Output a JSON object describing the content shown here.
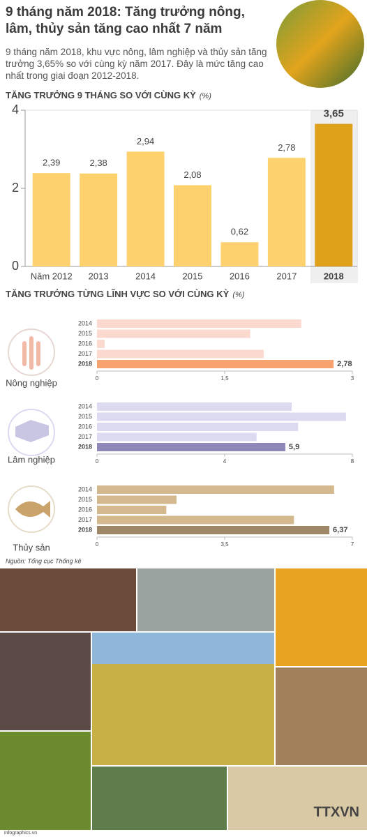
{
  "header": {
    "title": "9 tháng năm 2018: Tăng trưởng nông, lâm, thủy sản tăng cao nhất 7 năm",
    "description": "9 tháng năm 2018, khu vực nông, lâm nghiệp và thủy sản tăng trưởng 3,65% so với cùng kỳ năm 2017. Đây là mức tăng cao nhất trong giai đoạn 2012-2018."
  },
  "sector_section": {
    "title": "TĂNG TRƯỞNG TỪNG LĨNH VỰC SO VỚI CÙNG KỲ",
    "unit": "(%)"
  },
  "chart_data": [
    {
      "type": "bar",
      "title": "TĂNG TRƯỞNG 9 THÁNG SO VỚI CÙNG KỲ",
      "unit": "(%)",
      "categories": [
        "Năm 2012",
        "2013",
        "2014",
        "2015",
        "2016",
        "2017",
        "2018"
      ],
      "values": [
        2.39,
        2.38,
        2.94,
        2.08,
        0.62,
        2.78,
        3.65
      ],
      "value_labels": [
        "2,39",
        "2,38",
        "2,94",
        "2,08",
        "0,62",
        "2,78",
        "3,65"
      ],
      "colors": [
        "#fdd26e",
        "#fdd26e",
        "#fdd26e",
        "#fdd26e",
        "#fdd26e",
        "#fdd26e",
        "#dfa01a"
      ],
      "ylim": [
        0,
        4
      ],
      "yticks": [
        0,
        2,
        4
      ]
    },
    {
      "type": "hbar",
      "name": "Nông nghiệp",
      "categories": [
        "2014",
        "2015",
        "2016",
        "2017",
        "2018"
      ],
      "values": [
        2.4,
        1.8,
        0.09,
        1.96,
        2.78
      ],
      "value_labels": [
        null,
        null,
        null,
        null,
        "2,78"
      ],
      "colors": [
        "#fbd9cf",
        "#fbd9cf",
        "#fbd9cf",
        "#fbd9cf",
        "#f7a36f"
      ],
      "xlim": [
        0,
        3
      ],
      "xticks": [
        0,
        {
          "value": 1.5,
          "label": "1,5"
        },
        3
      ]
    },
    {
      "type": "hbar",
      "name": "Lâm nghiệp",
      "categories": [
        "2014",
        "2015",
        "2016",
        "2017",
        "2018"
      ],
      "values": [
        6.1,
        7.8,
        6.3,
        5.0,
        5.9
      ],
      "value_labels": [
        null,
        null,
        null,
        null,
        "5,9"
      ],
      "colors": [
        "#dcdaf0",
        "#dcdaf0",
        "#dcdaf0",
        "#dcdaf0",
        "#8d88b8"
      ],
      "xlim": [
        0,
        8
      ],
      "xticks": [
        0,
        4,
        8
      ]
    },
    {
      "type": "hbar",
      "name": "Thủy sản",
      "categories": [
        "2014",
        "2015",
        "2016",
        "2017",
        "2018"
      ],
      "values": [
        6.5,
        2.18,
        1.9,
        5.4,
        6.37
      ],
      "value_labels": [
        null,
        null,
        null,
        null,
        "6,37"
      ],
      "colors": [
        "#d3b98d",
        "#d3b98d",
        "#d3b98d",
        "#d3b98d",
        "#9c8766"
      ],
      "xlim": [
        0,
        7
      ],
      "xticks": [
        0,
        {
          "value": 3.5,
          "label": "3,5"
        },
        7
      ]
    }
  ],
  "source": "Nguồn: Tổng cục Thống kê",
  "footer": {
    "credit": "infographics.vn",
    "logo": "TTXVN"
  }
}
